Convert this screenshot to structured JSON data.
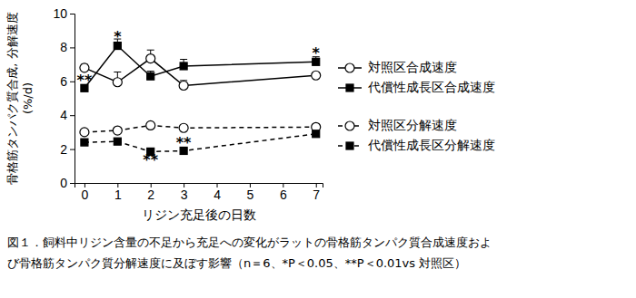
{
  "chart_data": {
    "type": "line",
    "y_label": [
      "骨格筋タンパク質合成, 分解速度",
      "(%/d)"
    ],
    "x_label": "リジン充足後の日数",
    "caption": [
      "図１．飼料中リジン含量の不足から充足への変化がラットの骨格筋タンパク質合成速度およ",
      "び骨格筋タンパク質分解速度に及ぼす影響（n＝6、*P＜0.05、**P＜0.01vs 対照区）"
    ],
    "x": [
      0,
      1,
      2,
      3,
      7
    ],
    "xlim": [
      -0.3,
      7.2
    ],
    "xticks": [
      0,
      1,
      2,
      3,
      4,
      5,
      6,
      7
    ],
    "ylim": [
      0,
      10
    ],
    "yticks": [
      0,
      2,
      4,
      6,
      8,
      10
    ],
    "grid": false,
    "legend": "right",
    "series": [
      {
        "name": "対照区合成速度",
        "color": "#000000",
        "marker": "open-circle",
        "line_style": "solid",
        "values": [
          6.8,
          5.95,
          7.35,
          5.75,
          6.35
        ],
        "errors": [
          0.2,
          0.6,
          0.5,
          0.3,
          0.1
        ]
      },
      {
        "name": "代償性成長区合成速度",
        "color": "#000000",
        "marker": "square",
        "line_style": "solid",
        "values": [
          5.6,
          8.1,
          6.3,
          6.9,
          7.15
        ],
        "errors": [
          0.2,
          0.4,
          0.3,
          0.4,
          0.3
        ]
      },
      {
        "name": "対照区分解速度",
        "color": "#000000",
        "marker": "open-circle",
        "line_style": "dashed",
        "values": [
          3.0,
          3.1,
          3.4,
          3.25,
          3.3
        ],
        "errors": [
          0.1,
          0.1,
          0.1,
          0.1,
          0.1
        ]
      },
      {
        "name": "代償性成長区分解速度",
        "color": "#000000",
        "marker": "square",
        "line_style": "dashed",
        "values": [
          2.4,
          2.45,
          1.85,
          1.9,
          2.9
        ],
        "errors": [
          0.1,
          0.1,
          0.1,
          0.1,
          0.1
        ]
      }
    ],
    "annotations": [
      {
        "text": "**",
        "x": 0,
        "y": 6.0
      },
      {
        "text": "*",
        "x": 1,
        "y": 8.6
      },
      {
        "text": "**",
        "x": 2,
        "y": 1.3
      },
      {
        "text": "**",
        "x": 3,
        "y": 2.3
      },
      {
        "text": "*",
        "x": 7,
        "y": 7.6
      }
    ]
  }
}
